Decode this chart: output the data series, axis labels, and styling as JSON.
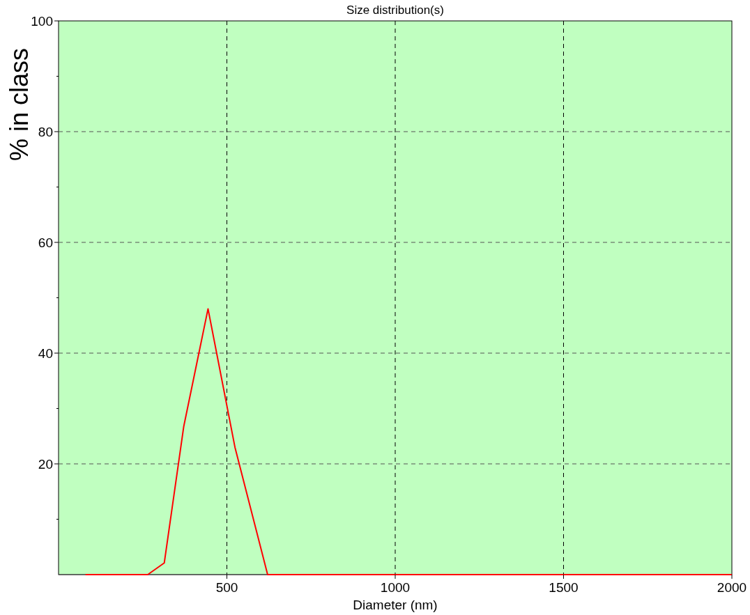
{
  "chart_data": {
    "type": "line",
    "title": "Size distribution(s)",
    "xlabel": "Diameter (nm)",
    "ylabel": "% in class",
    "xlim": [
      0,
      2000
    ],
    "xticks": [
      500,
      1000,
      1500,
      2000
    ],
    "ylim": [
      0,
      100
    ],
    "yticks": [
      {
        "value": 10,
        "label": null
      },
      20,
      {
        "value": 30,
        "label": null
      },
      40,
      {
        "value": 50,
        "label": null
      },
      60,
      {
        "value": 70,
        "label": null
      },
      80,
      {
        "value": 90,
        "label": null
      },
      100
    ],
    "grid": true,
    "line_style": "solid",
    "marker": "none",
    "series": [
      {
        "color": "#ff0000",
        "x": [
          80,
          265,
          314,
          372,
          444,
          524,
          621,
          2000
        ],
        "values": [
          0,
          0,
          2.1,
          26.8,
          48,
          23,
          0,
          0
        ]
      }
    ]
  }
}
